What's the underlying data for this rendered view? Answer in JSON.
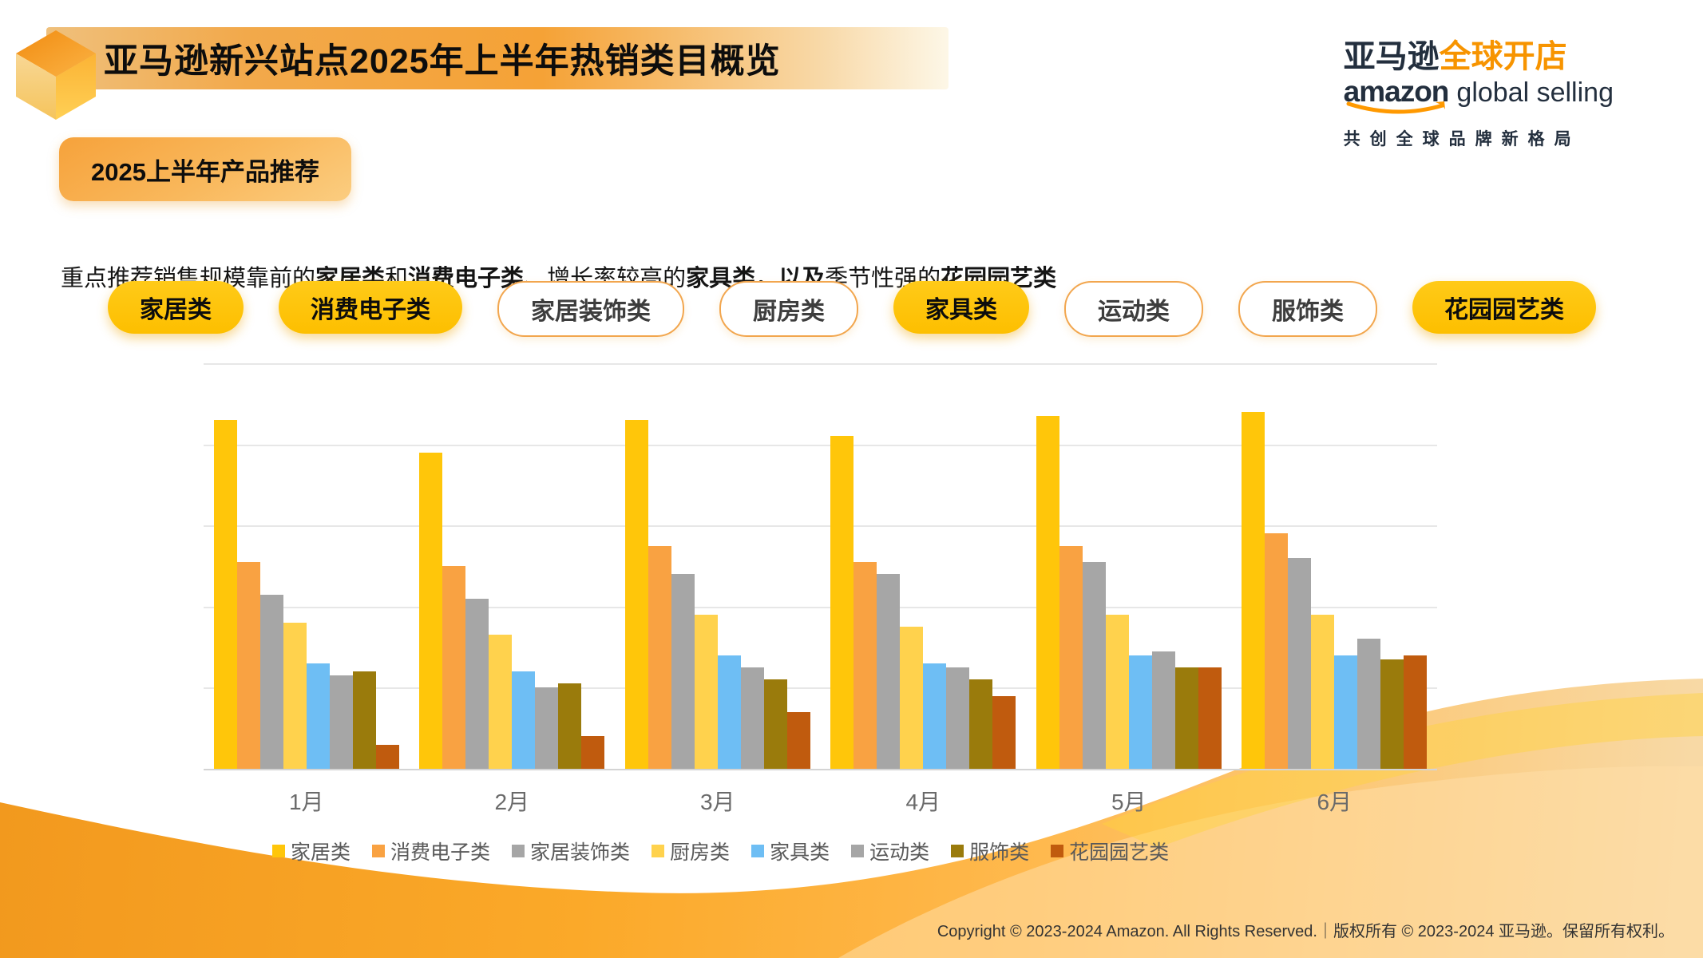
{
  "header": {
    "title": "亚马逊新兴站点2025年上半年热销类目概览",
    "logo": {
      "cn_dark": "亚马逊",
      "cn_orange": "全球开店",
      "en_bold": "amazon",
      "en_regular": "global selling",
      "tagline": "共创全球品牌新格局"
    }
  },
  "badge": "2025上半年产品推荐",
  "intro": {
    "segments": [
      {
        "text": "重点推荐销售规模靠前的",
        "bold": false
      },
      {
        "text": "家居类",
        "bold": true
      },
      {
        "text": "和",
        "bold": false
      },
      {
        "text": "消费电子类",
        "bold": true
      },
      {
        "text": "、增长率较高的",
        "bold": false
      },
      {
        "text": "家具类，以及",
        "bold": true
      },
      {
        "text": "季节性强的",
        "bold": false
      },
      {
        "text": "花园园艺类",
        "bold": true
      }
    ]
  },
  "pills": [
    {
      "label": "家居类",
      "style": "filled"
    },
    {
      "label": "消费电子类",
      "style": "filled"
    },
    {
      "label": "家居装饰类",
      "style": "outline"
    },
    {
      "label": "厨房类",
      "style": "outline"
    },
    {
      "label": "家具类",
      "style": "filled"
    },
    {
      "label": "运动类",
      "style": "outline"
    },
    {
      "label": "服饰类",
      "style": "outline"
    },
    {
      "label": "花园园艺类",
      "style": "filled"
    }
  ],
  "chart_data": {
    "type": "bar",
    "title": "",
    "categories": [
      "1月",
      "2月",
      "3月",
      "4月",
      "5月",
      "6月"
    ],
    "series": [
      {
        "name": "家居类",
        "color": "#ffc60a",
        "values": [
          4.3,
          3.9,
          4.3,
          4.1,
          4.35,
          4.4
        ]
      },
      {
        "name": "消费电子类",
        "color": "#f9a242",
        "values": [
          2.55,
          2.5,
          2.75,
          2.55,
          2.75,
          2.9
        ]
      },
      {
        "name": "家居装饰类",
        "color": "#a6a6a6",
        "values": [
          2.15,
          2.1,
          2.4,
          2.4,
          2.55,
          2.6
        ]
      },
      {
        "name": "厨房类",
        "color": "#ffd24d",
        "values": [
          1.8,
          1.65,
          1.9,
          1.75,
          1.9,
          1.9
        ]
      },
      {
        "name": "家具类",
        "color": "#6ebef4",
        "values": [
          1.3,
          1.2,
          1.4,
          1.3,
          1.4,
          1.4
        ]
      },
      {
        "name": "运动类",
        "color": "#a6a6a6",
        "values": [
          1.15,
          1.0,
          1.25,
          1.25,
          1.45,
          1.6
        ]
      },
      {
        "name": "服饰类",
        "color": "#9a7b0c",
        "values": [
          1.2,
          1.05,
          1.1,
          1.1,
          1.25,
          1.35
        ]
      },
      {
        "name": "花园园艺类",
        "color": "#c05b0e",
        "values": [
          0.3,
          0.4,
          0.7,
          0.9,
          1.25,
          1.4
        ]
      }
    ],
    "ylim": [
      0,
      5
    ],
    "gridline_count": 6,
    "y_axis_labels_visible": false,
    "grid": true,
    "legend_position": "bottom",
    "xlabel": "",
    "ylabel": ""
  },
  "footer": "Copyright © 2023-2024 Amazon. All Rights Reserved.｜版权所有 © 2023-2024 亚马逊。保留所有权利。",
  "colors": {
    "brand_gold": "#ffc60a",
    "brand_orange": "#f79400",
    "banner_orange": "#f5a236",
    "wave_deep": "#f2991e",
    "wave_light": "#f8d9a5",
    "navy": "#232f3e",
    "grid": "#e7e7e7"
  }
}
